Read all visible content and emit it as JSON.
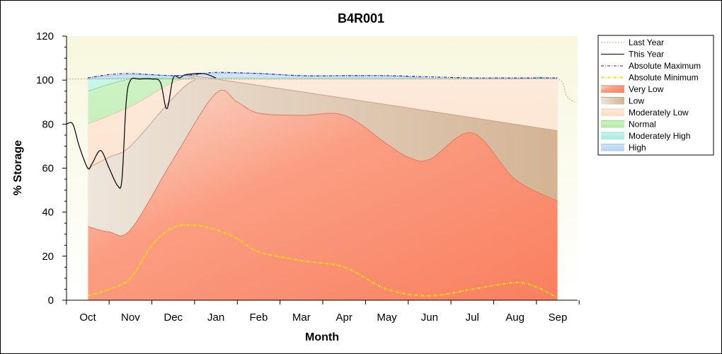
{
  "chart_data": {
    "type": "area",
    "title": "B4R001",
    "xlabel": "Month",
    "ylabel": "% Storage",
    "ylim": [
      0,
      120
    ],
    "y_ticks": [
      0,
      20,
      40,
      60,
      80,
      100,
      120
    ],
    "categories": [
      "Oct",
      "Nov",
      "Dec",
      "Jan",
      "Feb",
      "Mar",
      "Apr",
      "May",
      "Jun",
      "Jul",
      "Aug",
      "Sep"
    ],
    "xlim": [
      -0.5,
      11.5
    ],
    "grid": false,
    "legend_position": "right",
    "bands": [
      {
        "name": "Very Low",
        "color": "#fa8c6e",
        "x": [
          0,
          0.5,
          1,
          2,
          3,
          3.5,
          4,
          5,
          6,
          7,
          7.5,
          8,
          9,
          10,
          11
        ],
        "lower": [
          0,
          0,
          0,
          0,
          0,
          0,
          0,
          0,
          0,
          0,
          0,
          0,
          0,
          0,
          0
        ],
        "upper": [
          33.5,
          31,
          32,
          64,
          94,
          90,
          85,
          84,
          84,
          71,
          65,
          64,
          76,
          55,
          45
        ]
      },
      {
        "name": "Low",
        "color": "#d9b799",
        "x": [
          0,
          0.5,
          1,
          2,
          2.5,
          3,
          11
        ],
        "upper": [
          60,
          65,
          70,
          92,
          100,
          100.5,
          77
        ]
      },
      {
        "name": "Moderately Low",
        "color": "#fde3cf",
        "x": [
          0,
          1,
          2,
          2.5,
          3,
          10,
          11
        ],
        "upper": [
          80,
          88,
          99,
          100.5,
          100.5,
          100.5,
          100.5
        ]
      },
      {
        "name": "Normal",
        "color": "#c6f0c0",
        "x": [
          0,
          1,
          2,
          3,
          10,
          11
        ],
        "upper": [
          95,
          100.5,
          100.5,
          100.5,
          100.5,
          100.5
        ]
      },
      {
        "name": "Moderately High",
        "color": "#b6f2e6",
        "x": [
          0,
          1,
          2,
          3,
          10,
          10.5,
          11
        ],
        "upper": [
          100.5,
          101,
          101,
          101,
          101,
          101,
          96
        ]
      },
      {
        "name": "High",
        "color": "#c4ddf4",
        "x": [
          0,
          1,
          2,
          3,
          4,
          5,
          6,
          7,
          8,
          9,
          10,
          11
        ],
        "upper": [
          101,
          102.5,
          102,
          103,
          103,
          102,
          102,
          102,
          101,
          101,
          101,
          101
        ]
      }
    ],
    "series": [
      {
        "name": "Last Year",
        "color": "#d9a070",
        "style": "dotted",
        "x": [
          -0.5,
          0,
          1,
          2,
          3,
          4,
          5,
          6,
          7,
          8,
          9,
          10,
          11,
          11.2,
          11.4
        ],
        "y": [
          100.5,
          100.5,
          100.5,
          100.5,
          100.5,
          100.5,
          100.5,
          100.5,
          100.5,
          100.5,
          100.5,
          100.5,
          100.5,
          93,
          90
        ]
      },
      {
        "name": "This Year",
        "color": "#000000",
        "style": "solid",
        "x": [
          -0.5,
          -0.35,
          -0.2,
          0,
          0.1,
          0.3,
          0.5,
          0.7,
          0.8,
          0.9,
          1.0,
          1.2,
          1.5,
          1.7,
          1.85,
          2.0,
          2.15,
          2.3,
          2.7,
          3.0
        ],
        "y": [
          80,
          80,
          70,
          60,
          62,
          68,
          60,
          52,
          55,
          90,
          100,
          100.5,
          100.5,
          99,
          87,
          101,
          101,
          102.5,
          103,
          101
        ]
      },
      {
        "name": "Absolute Maximum",
        "color": "#2020d0",
        "style": "dashdot",
        "x": [
          0,
          0.5,
          1,
          1.5,
          2,
          2.5,
          3,
          4,
          5,
          6,
          7,
          8,
          9,
          10,
          11
        ],
        "y": [
          101,
          102.5,
          103,
          102.5,
          102,
          102.5,
          103.5,
          103,
          102,
          102,
          102,
          101.5,
          101,
          101,
          101
        ]
      },
      {
        "name": "Absolute Minimum",
        "color": "#f3e400",
        "style": "dashdot",
        "x": [
          0,
          0.5,
          1,
          1.5,
          2,
          2.5,
          3,
          3.5,
          4,
          5,
          6,
          7,
          8,
          9,
          10,
          10.5,
          11
        ],
        "y": [
          2,
          5,
          10,
          25,
          33,
          34,
          32,
          28,
          22,
          18,
          15,
          5,
          2,
          5,
          8,
          6,
          1
        ]
      }
    ]
  }
}
